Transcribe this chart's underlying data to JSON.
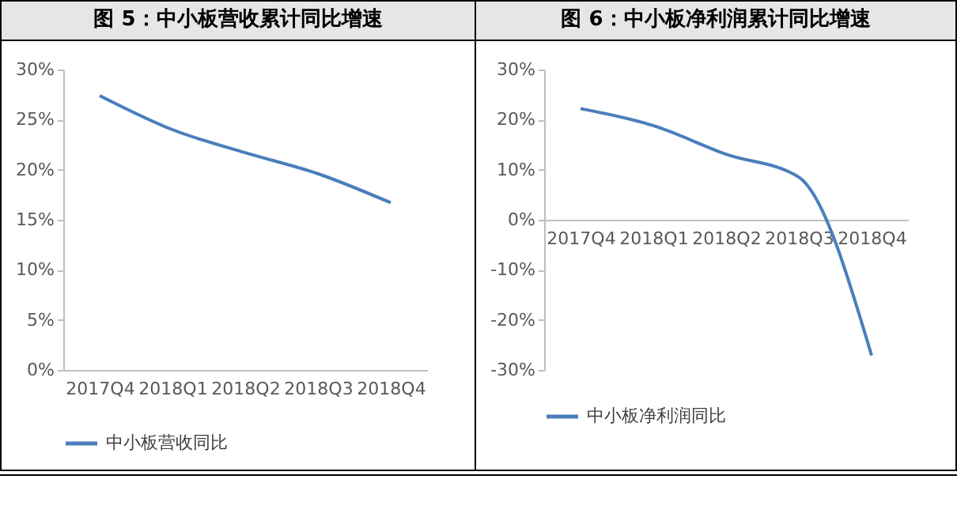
{
  "chart_data": [
    {
      "type": "line",
      "title": "图 5：中小板营收累计同比增速",
      "categories": [
        "2017Q4",
        "2018Q1",
        "2018Q2",
        "2018Q3",
        "2018Q4"
      ],
      "series": [
        {
          "name": "中小板营收同比",
          "color": "#4a7ebb",
          "values": [
            27.4,
            24.0,
            21.7,
            19.6,
            16.7
          ]
        }
      ],
      "ylim": [
        0,
        30
      ],
      "yticks": [
        {
          "value": 0,
          "label": "0%"
        },
        {
          "value": 5,
          "label": "5%"
        },
        {
          "value": 10,
          "label": "10%"
        },
        {
          "value": 15,
          "label": "15%"
        },
        {
          "value": 20,
          "label": "20%"
        },
        {
          "value": 25,
          "label": "25%"
        },
        {
          "value": 30,
          "label": "30%"
        }
      ],
      "legend": "bottom",
      "grid": false,
      "marker": "none"
    },
    {
      "type": "line",
      "title": "图 6：中小板净利润累计同比增速",
      "categories": [
        "2017Q4",
        "2018Q1",
        "2018Q2",
        "2018Q3",
        "2018Q4"
      ],
      "series": [
        {
          "name": "中小板净利润同比",
          "color": "#4a7ebb",
          "values": [
            22.2,
            18.8,
            13.1,
            8.5,
            -27.1
          ]
        }
      ],
      "ylim": [
        -30,
        30
      ],
      "yticks": [
        {
          "value": -30,
          "label": "-30%"
        },
        {
          "value": -20,
          "label": "-20%"
        },
        {
          "value": -10,
          "label": "-10%"
        },
        {
          "value": 0,
          "label": "0%"
        },
        {
          "value": 10,
          "label": "10%"
        },
        {
          "value": 20,
          "label": "20%"
        },
        {
          "value": 30,
          "label": "30%"
        }
      ],
      "legend": "bottom",
      "grid": false,
      "marker": "none"
    }
  ]
}
